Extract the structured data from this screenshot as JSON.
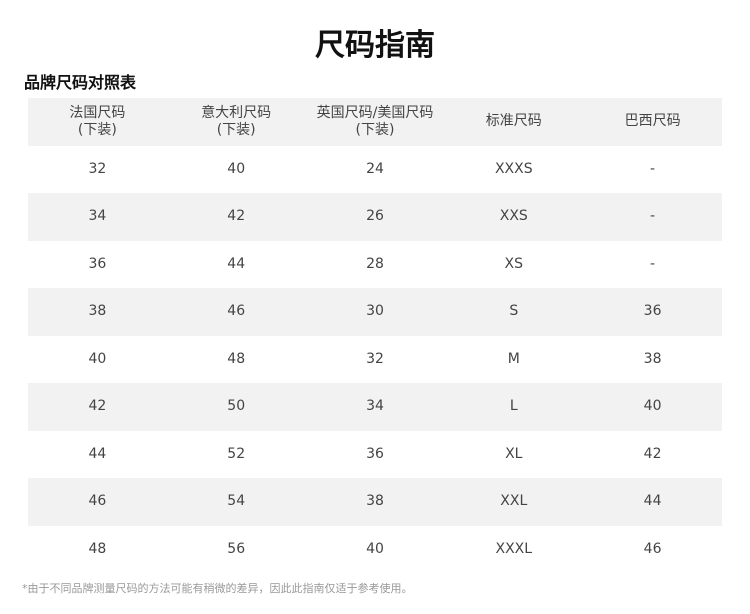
{
  "title": "尺码指南",
  "subtitle": "品牌尺码对照表",
  "table": {
    "header": [
      [
        "法国尺码",
        "(下装)"
      ],
      [
        "意大利尺码",
        "(下装)"
      ],
      [
        "英国尺码/美国尺码",
        "(下装)"
      ],
      [
        "标准尺码"
      ],
      [
        "巴西尺码"
      ]
    ],
    "rows": [
      [
        "32",
        "40",
        "24",
        "XXXS",
        "-"
      ],
      [
        "34",
        "42",
        "26",
        "XXS",
        "-"
      ],
      [
        "36",
        "44",
        "28",
        "XS",
        "-"
      ],
      [
        "38",
        "46",
        "30",
        "S",
        "36"
      ],
      [
        "40",
        "48",
        "32",
        "M",
        "38"
      ],
      [
        "42",
        "50",
        "34",
        "L",
        "40"
      ],
      [
        "44",
        "52",
        "36",
        "XL",
        "42"
      ],
      [
        "46",
        "54",
        "38",
        "XXL",
        "44"
      ],
      [
        "48",
        "56",
        "40",
        "XXXL",
        "46"
      ]
    ]
  },
  "footnote": "*由于不同品牌测量尺码的方法可能有稍微的差异，因此此指南仅适于参考使用。"
}
